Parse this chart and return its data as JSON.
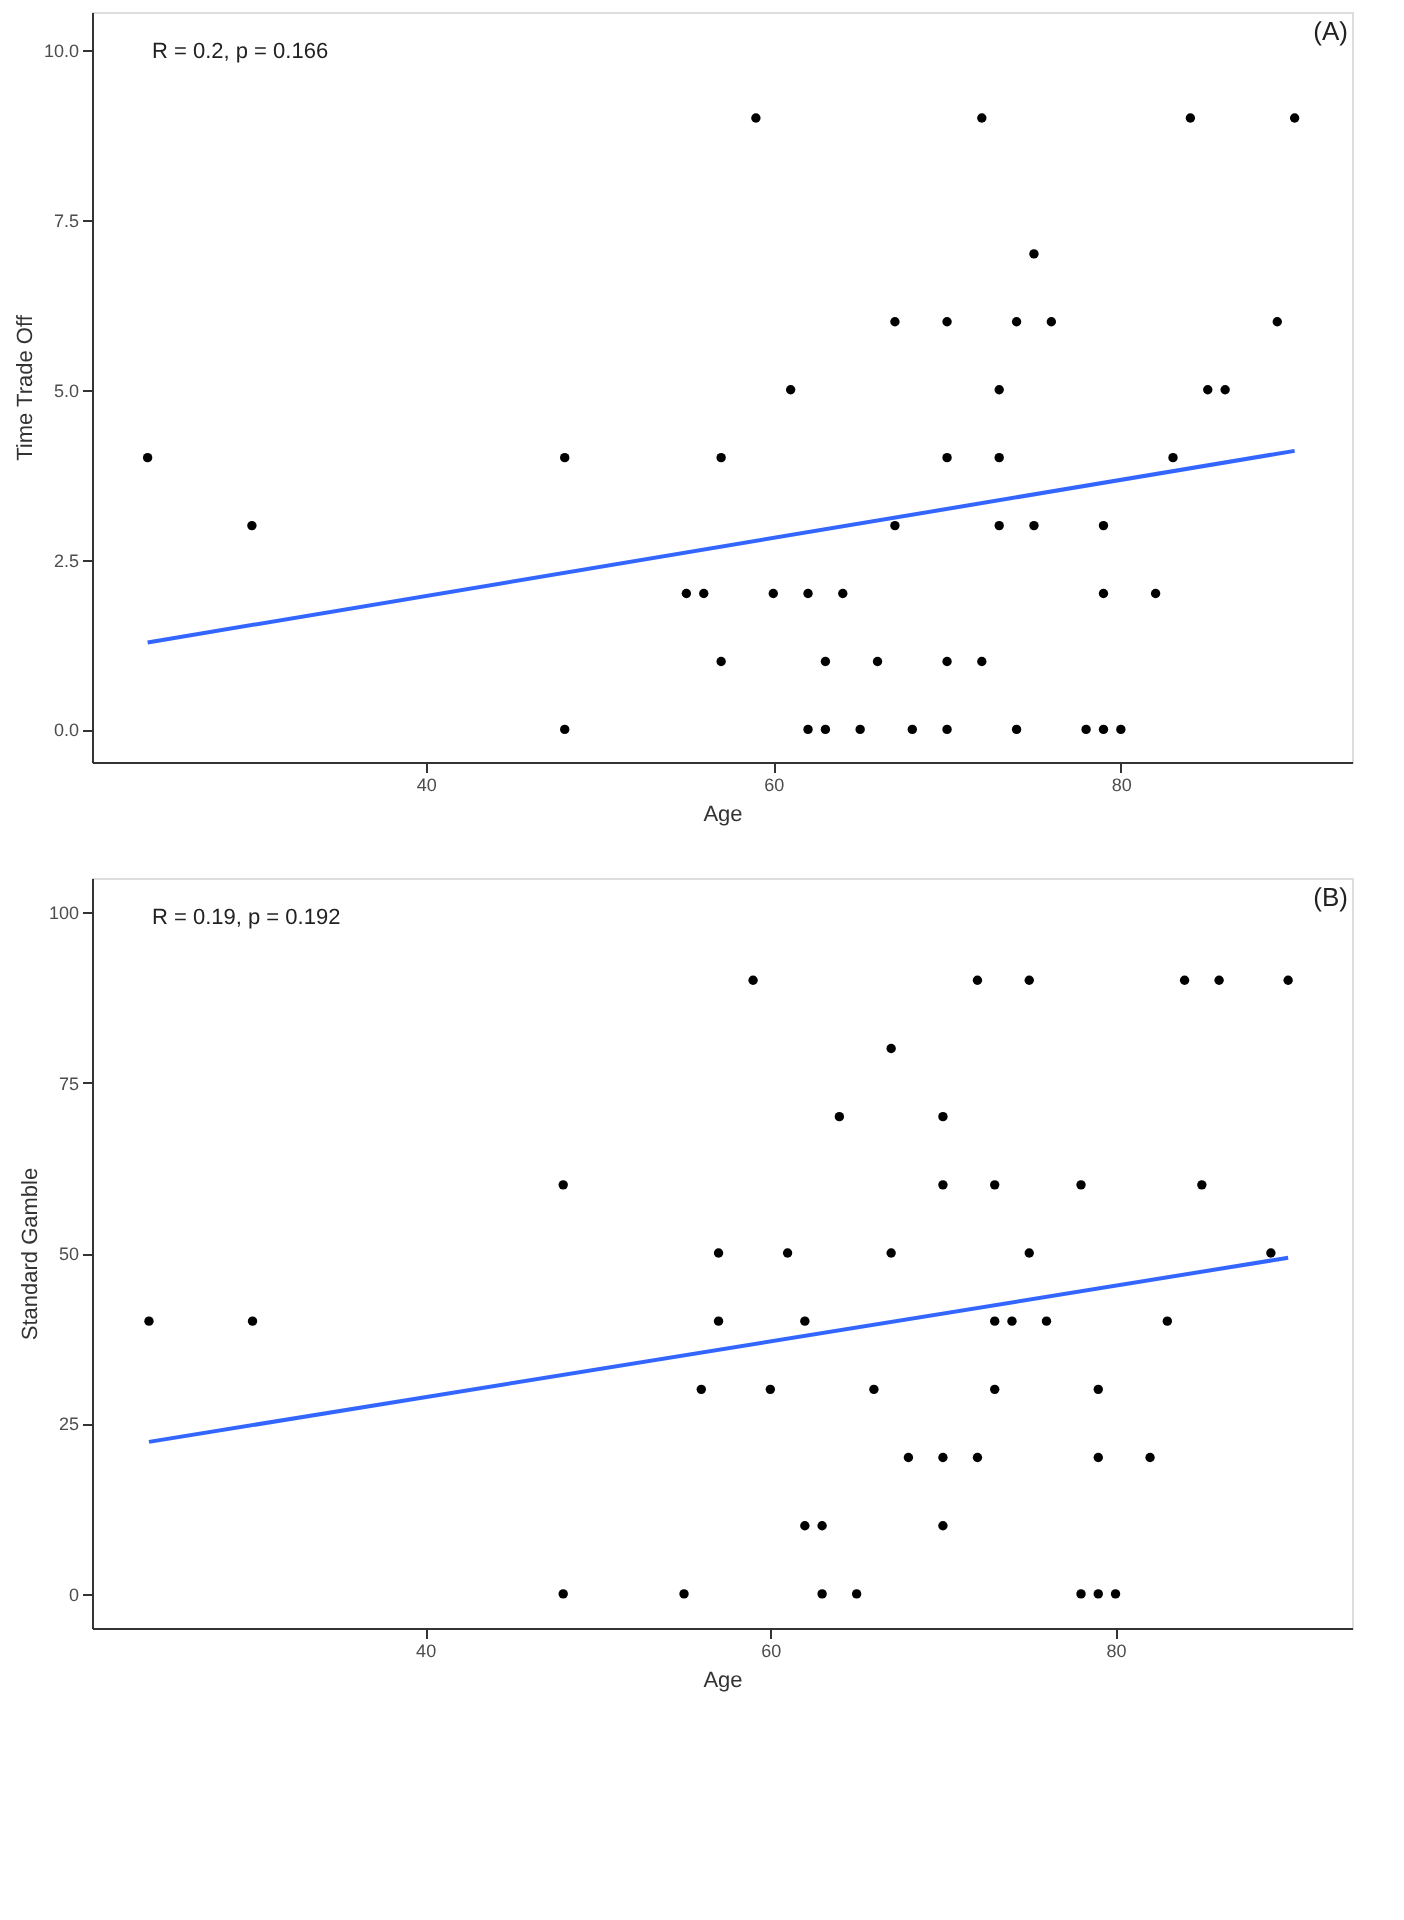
{
  "chart_data": [
    {
      "type": "scatter",
      "xlabel": "Age",
      "ylabel": "Time Trade Off",
      "xlim": [
        20.8,
        93.3
      ],
      "ylim": [
        -0.48,
        10.56
      ],
      "xticks": [
        40,
        60,
        80
      ],
      "yticks": [
        {
          "value": 0,
          "label": "0.0"
        },
        {
          "value": 2.5,
          "label": "2.5"
        },
        {
          "value": 5,
          "label": "5.0"
        },
        {
          "value": 7.5,
          "label": "7.5"
        },
        {
          "value": 10,
          "label": "10.0"
        }
      ],
      "grid": false,
      "annotations": [
        "R = 0.2, p = 0.166",
        "(A)"
      ],
      "series": [
        {
          "color": "#000000",
          "marker": "circle",
          "x": [
            24,
            30,
            48,
            48,
            55,
            56,
            57,
            57,
            59,
            60,
            61,
            62,
            62,
            63,
            63,
            64,
            65,
            66,
            67,
            67,
            68,
            70,
            70,
            70,
            70,
            72,
            72,
            73,
            73,
            73,
            74,
            74,
            75,
            75,
            76,
            78,
            79,
            79,
            79,
            80,
            82,
            83,
            84,
            85,
            86,
            89,
            90
          ],
          "values": [
            4,
            3,
            4,
            0,
            2,
            2,
            4,
            1,
            9,
            2,
            5,
            2,
            0,
            1,
            0,
            2,
            0,
            1,
            6,
            3,
            0,
            6,
            4,
            1,
            0,
            9,
            1,
            5,
            4,
            3,
            6,
            0,
            7,
            3,
            6,
            0,
            3,
            2,
            0,
            0,
            2,
            4,
            9,
            5,
            5,
            6,
            9
          ]
        },
        {
          "type": "line",
          "color": "#3366ff",
          "line_style": "solid",
          "marker": "none",
          "x": [
            24,
            90
          ],
          "values": [
            1.28,
            4.1
          ]
        }
      ]
    },
    {
      "type": "scatter",
      "xlabel": "Age",
      "ylabel": "Standard Gamble",
      "xlim": [
        20.7,
        93.7
      ],
      "ylim": [
        -5,
        105
      ],
      "xticks": [
        40,
        60,
        80
      ],
      "yticks": [
        0,
        25,
        50,
        75,
        100
      ],
      "grid": false,
      "annotations": [
        "R = 0.19, p = 0.192",
        "(B)"
      ],
      "series": [
        {
          "color": "#000000",
          "marker": "circle",
          "x": [
            24,
            30,
            48,
            48,
            55,
            56,
            57,
            57,
            59,
            60,
            61,
            62,
            62,
            63,
            63,
            64,
            65,
            66,
            67,
            67,
            68,
            70,
            70,
            70,
            70,
            72,
            72,
            73,
            73,
            73,
            74,
            75,
            75,
            76,
            78,
            78,
            79,
            79,
            79,
            80,
            82,
            83,
            84,
            85,
            86,
            89,
            90
          ],
          "values": [
            40,
            40,
            60,
            0,
            0,
            30,
            50,
            40,
            90,
            30,
            50,
            40,
            10,
            10,
            0,
            70,
            0,
            30,
            80,
            50,
            20,
            70,
            60,
            20,
            10,
            90,
            20,
            60,
            40,
            30,
            40,
            90,
            50,
            40,
            60,
            0,
            30,
            20,
            0,
            0,
            20,
            40,
            90,
            60,
            90,
            50,
            90
          ]
        },
        {
          "type": "line",
          "color": "#3366ff",
          "line_style": "solid",
          "marker": "none",
          "x": [
            24,
            90
          ],
          "values": [
            22.3,
            49.3
          ]
        }
      ]
    }
  ]
}
